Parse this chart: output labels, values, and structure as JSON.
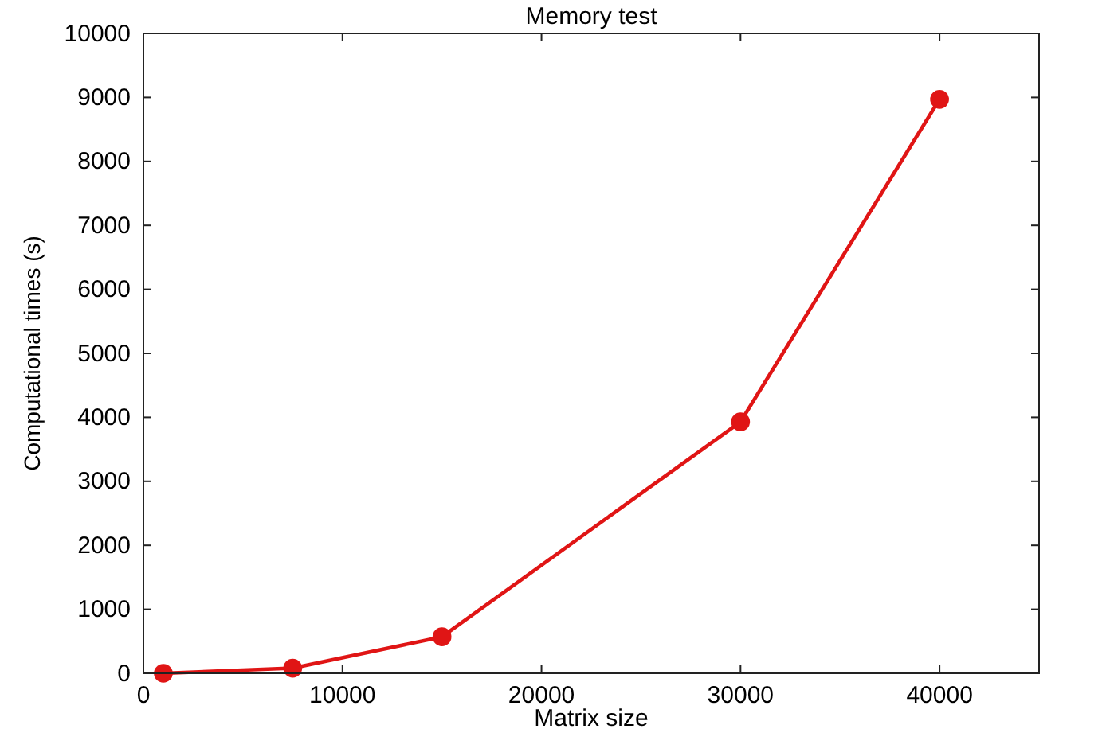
{
  "chart_data": {
    "type": "line",
    "title": "Memory test",
    "xlabel": "Matrix size",
    "ylabel": "Computational times (s)",
    "x": [
      1000,
      7500,
      15000,
      30000,
      40000
    ],
    "series": [
      {
        "color": "#e01515",
        "values": [
          0,
          80,
          570,
          3930,
          8970
        ]
      }
    ],
    "xlim": [
      0,
      45000
    ],
    "xticks": [
      0,
      10000,
      20000,
      30000,
      40000
    ],
    "ylim": [
      0,
      10000
    ],
    "yticks": [
      0,
      1000,
      2000,
      3000,
      4000,
      5000,
      6000,
      7000,
      8000,
      9000,
      10000
    ],
    "grid": false,
    "marker": "circle",
    "line_style": "solid"
  }
}
